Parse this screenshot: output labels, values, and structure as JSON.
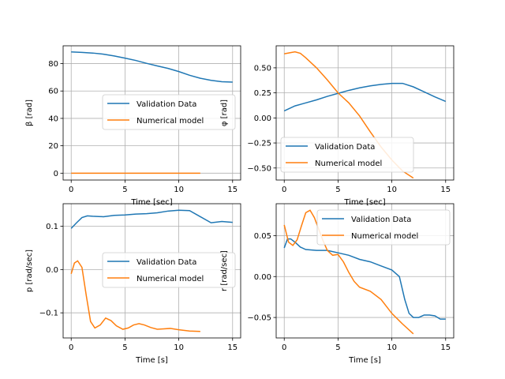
{
  "chart_data": [
    {
      "type": "line",
      "xlabel": "Time [sec]",
      "ylabel": "β [rad]",
      "xlim": [
        -0.75,
        15.75
      ],
      "ylim": [
        -5,
        93
      ],
      "xticks": [
        0,
        5,
        10,
        15
      ],
      "yticks": [
        0,
        20,
        40,
        60,
        80
      ],
      "ytick_labels": [
        "0",
        "20",
        "40",
        "60",
        "80"
      ],
      "grid": true,
      "legend": "center-right",
      "series": [
        {
          "name": "Validation Data",
          "color": "#1f77b4",
          "x": [
            0,
            1,
            2,
            3,
            4,
            5,
            6,
            7,
            8,
            9,
            10,
            11,
            12,
            13,
            14,
            15
          ],
          "y": [
            88.5,
            88.2,
            87.7,
            86.9,
            85.6,
            84.0,
            82.3,
            80.2,
            78.3,
            76.5,
            74.2,
            71.5,
            69.3,
            67.8,
            66.8,
            66.5
          ]
        },
        {
          "name": "Numerical model",
          "color": "#ff7f0e",
          "x": [
            0,
            3,
            6,
            9,
            12
          ],
          "y": [
            0,
            0,
            0,
            0,
            0
          ]
        }
      ]
    },
    {
      "type": "line",
      "xlabel": "Time [sec]",
      "ylabel": "φ [rad]",
      "xlim": [
        -0.75,
        15.75
      ],
      "ylim": [
        -0.62,
        0.72
      ],
      "xticks": [
        0,
        5,
        10,
        15
      ],
      "yticks": [
        0.5,
        0.25,
        0.0,
        -0.25,
        -0.5
      ],
      "ytick_labels": [
        "0.50",
        "0.25",
        "0.00",
        "−0.25",
        "−0.50"
      ],
      "grid": true,
      "legend": "lower-left",
      "series": [
        {
          "name": "Validation Data",
          "color": "#1f77b4",
          "x": [
            0,
            1,
            2,
            3,
            4,
            5,
            6,
            7,
            8,
            9,
            10,
            11,
            12,
            13,
            14,
            15
          ],
          "y": [
            0.07,
            0.12,
            0.15,
            0.18,
            0.215,
            0.245,
            0.275,
            0.3,
            0.32,
            0.335,
            0.345,
            0.345,
            0.31,
            0.26,
            0.21,
            0.165
          ]
        },
        {
          "name": "Numerical model",
          "color": "#ff7f0e",
          "x": [
            0,
            0.5,
            1,
            1.5,
            2,
            3,
            4,
            5,
            6,
            7,
            8,
            9,
            10,
            11,
            12
          ],
          "y": [
            0.64,
            0.65,
            0.66,
            0.645,
            0.6,
            0.5,
            0.38,
            0.25,
            0.15,
            0.02,
            -0.14,
            -0.29,
            -0.42,
            -0.53,
            -0.6
          ]
        }
      ]
    },
    {
      "type": "line",
      "xlabel": "Time [s]",
      "ylabel": "p [rad/sec]",
      "xlim": [
        -0.75,
        15.75
      ],
      "ylim": [
        -0.158,
        0.152
      ],
      "xticks": [
        0,
        5,
        10,
        15
      ],
      "yticks": [
        0.1,
        0.0,
        -0.1
      ],
      "ytick_labels": [
        "0.1",
        "0.0",
        "−0.1"
      ],
      "grid": true,
      "legend": "center-right",
      "series": [
        {
          "name": "Validation Data",
          "color": "#1f77b4",
          "x": [
            0,
            0.5,
            1,
            1.5,
            2,
            3,
            4,
            5,
            6,
            7,
            8,
            9,
            10,
            11,
            12,
            13,
            14,
            15
          ],
          "y": [
            0.095,
            0.108,
            0.12,
            0.124,
            0.123,
            0.122,
            0.125,
            0.126,
            0.128,
            0.129,
            0.131,
            0.135,
            0.137,
            0.136,
            0.122,
            0.108,
            0.111,
            0.109
          ]
        },
        {
          "name": "Numerical model",
          "color": "#ff7f0e",
          "x": [
            0,
            0.3,
            0.6,
            1.0,
            1.4,
            1.8,
            2.2,
            2.7,
            3.2,
            3.7,
            4.2,
            4.8,
            5.3,
            5.8,
            6.3,
            6.8,
            7.4,
            8.0,
            8.6,
            9.2,
            10,
            11,
            12
          ],
          "y": [
            -0.01,
            0.015,
            0.02,
            0.005,
            -0.06,
            -0.12,
            -0.135,
            -0.128,
            -0.112,
            -0.118,
            -0.13,
            -0.138,
            -0.135,
            -0.128,
            -0.125,
            -0.128,
            -0.134,
            -0.138,
            -0.137,
            -0.136,
            -0.139,
            -0.142,
            -0.143
          ]
        }
      ]
    },
    {
      "type": "line",
      "xlabel": "Time [s]",
      "ylabel": "r [rad/sec]",
      "xlim": [
        -0.75,
        15.75
      ],
      "ylim": [
        -0.075,
        0.089
      ],
      "xticks": [
        0,
        5,
        10,
        15
      ],
      "yticks": [
        0.05,
        0.0,
        -0.05
      ],
      "ytick_labels": [
        "0.05",
        "0.00",
        "−0.05"
      ],
      "grid": true,
      "legend": "upper-right",
      "series": [
        {
          "name": "Validation Data",
          "color": "#1f77b4",
          "x": [
            0,
            0.3,
            0.6,
            1,
            1.5,
            2,
            3,
            4,
            5,
            6,
            7,
            8,
            9,
            10,
            10.7,
            11.2,
            11.6,
            12,
            12.5,
            13,
            13.5,
            14,
            14.5,
            15
          ],
          "y": [
            0.035,
            0.046,
            0.046,
            0.042,
            0.036,
            0.033,
            0.032,
            0.032,
            0.029,
            0.026,
            0.021,
            0.018,
            0.013,
            0.008,
            0.0,
            -0.028,
            -0.045,
            -0.05,
            -0.05,
            -0.047,
            -0.047,
            -0.048,
            -0.052,
            -0.052
          ]
        },
        {
          "name": "Numerical model",
          "color": "#ff7f0e",
          "x": [
            0,
            0.4,
            0.8,
            1.2,
            1.6,
            2.0,
            2.4,
            2.8,
            3.2,
            3.6,
            4.0,
            4.5,
            5.0,
            5.5,
            6.0,
            6.5,
            7.0,
            8.0,
            9.0,
            10.0,
            11.0,
            12.0
          ],
          "y": [
            0.063,
            0.042,
            0.038,
            0.045,
            0.062,
            0.078,
            0.081,
            0.072,
            0.058,
            0.044,
            0.032,
            0.026,
            0.027,
            0.018,
            0.005,
            -0.006,
            -0.013,
            -0.018,
            -0.028,
            -0.045,
            -0.058,
            -0.07
          ]
        }
      ]
    }
  ]
}
